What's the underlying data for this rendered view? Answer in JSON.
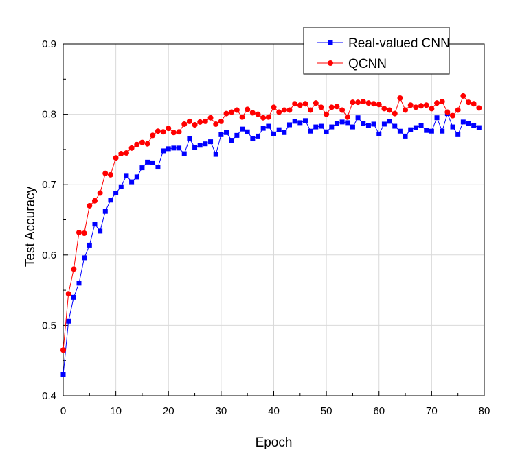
{
  "chart_data": {
    "type": "line",
    "xlabel": "Epoch",
    "ylabel": "Test Accuracy",
    "xlim": [
      0,
      80
    ],
    "ylim": [
      0.4,
      0.9
    ],
    "xticks": [
      0,
      10,
      20,
      30,
      40,
      50,
      60,
      70,
      80
    ],
    "yticks": [
      0.4,
      0.5,
      0.6,
      0.7,
      0.8,
      0.9
    ],
    "xtick_labels": [
      "0",
      "10",
      "20",
      "30",
      "40",
      "50",
      "60",
      "70",
      "80"
    ],
    "ytick_labels": [
      "0.4",
      "0.5",
      "0.6",
      "0.7",
      "0.8",
      "0.9"
    ],
    "grid": true,
    "legend_position": "top-right",
    "x": [
      0,
      1,
      2,
      3,
      4,
      5,
      6,
      7,
      8,
      9,
      10,
      11,
      12,
      13,
      14,
      15,
      16,
      17,
      18,
      19,
      20,
      21,
      22,
      23,
      24,
      25,
      26,
      27,
      28,
      29,
      30,
      31,
      32,
      33,
      34,
      35,
      36,
      37,
      38,
      39,
      40,
      41,
      42,
      43,
      44,
      45,
      46,
      47,
      48,
      49,
      50,
      51,
      52,
      53,
      54,
      55,
      56,
      57,
      58,
      59,
      60,
      61,
      62,
      63,
      64,
      65,
      66,
      67,
      68,
      69,
      70,
      71,
      72,
      73,
      74,
      75,
      76,
      77,
      78,
      79
    ],
    "series": [
      {
        "name": "Real-valued CNN",
        "color": "#0000ff",
        "marker": "square",
        "values": [
          0.43,
          0.506,
          0.54,
          0.56,
          0.596,
          0.614,
          0.644,
          0.634,
          0.662,
          0.678,
          0.688,
          0.697,
          0.713,
          0.704,
          0.711,
          0.724,
          0.732,
          0.731,
          0.725,
          0.748,
          0.751,
          0.752,
          0.752,
          0.744,
          0.765,
          0.753,
          0.756,
          0.758,
          0.761,
          0.743,
          0.771,
          0.774,
          0.763,
          0.77,
          0.779,
          0.775,
          0.765,
          0.769,
          0.78,
          0.783,
          0.772,
          0.778,
          0.774,
          0.785,
          0.79,
          0.788,
          0.791,
          0.776,
          0.782,
          0.783,
          0.775,
          0.782,
          0.787,
          0.789,
          0.788,
          0.782,
          0.795,
          0.787,
          0.784,
          0.786,
          0.772,
          0.786,
          0.79,
          0.783,
          0.776,
          0.769,
          0.778,
          0.781,
          0.784,
          0.777,
          0.776,
          0.795,
          0.776,
          0.801,
          0.782,
          0.771,
          0.789,
          0.787,
          0.784,
          0.781
        ]
      },
      {
        "name": "QCNN",
        "color": "#ff0000",
        "marker": "circle",
        "values": [
          0.465,
          0.545,
          0.58,
          0.632,
          0.631,
          0.67,
          0.677,
          0.688,
          0.716,
          0.714,
          0.738,
          0.744,
          0.745,
          0.752,
          0.757,
          0.76,
          0.758,
          0.77,
          0.776,
          0.775,
          0.78,
          0.774,
          0.775,
          0.786,
          0.79,
          0.785,
          0.789,
          0.79,
          0.795,
          0.786,
          0.79,
          0.801,
          0.803,
          0.806,
          0.796,
          0.807,
          0.802,
          0.8,
          0.795,
          0.796,
          0.81,
          0.803,
          0.806,
          0.806,
          0.815,
          0.813,
          0.815,
          0.806,
          0.816,
          0.81,
          0.8,
          0.81,
          0.811,
          0.806,
          0.796,
          0.817,
          0.817,
          0.818,
          0.816,
          0.815,
          0.814,
          0.808,
          0.806,
          0.801,
          0.823,
          0.806,
          0.813,
          0.81,
          0.812,
          0.813,
          0.808,
          0.816,
          0.818,
          0.803,
          0.798,
          0.806,
          0.826,
          0.817,
          0.815,
          0.809
        ]
      }
    ]
  }
}
